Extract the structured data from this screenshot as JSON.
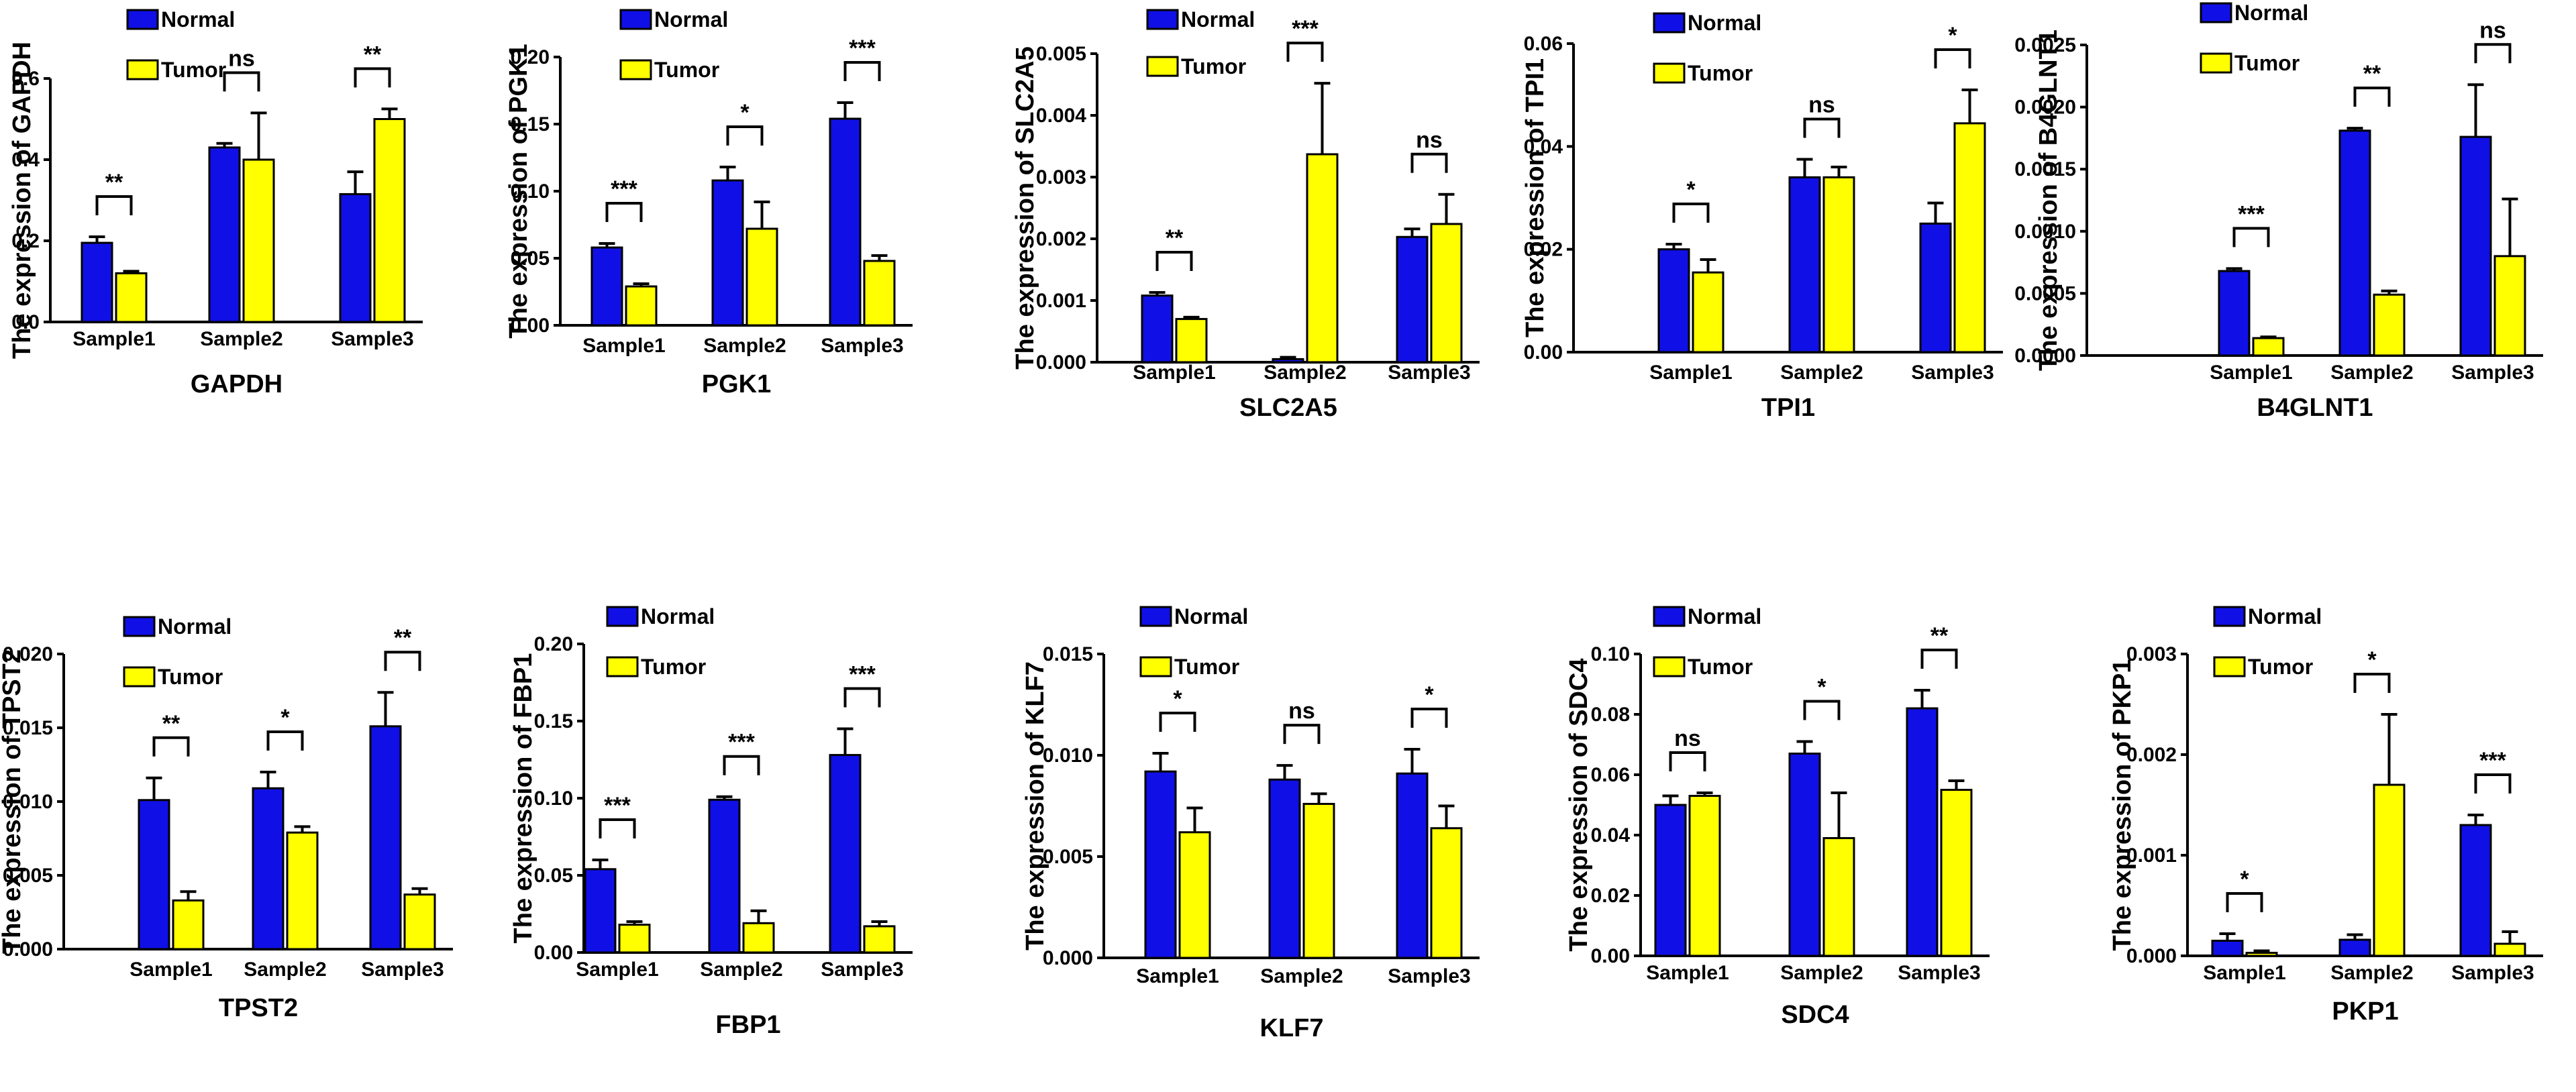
{
  "colors": {
    "normal": "#1010E6",
    "tumor": "#FFFF00",
    "stroke": "#000000"
  },
  "legend": {
    "normal": "Normal",
    "tumor": "Tumor"
  },
  "chart_data": [
    {
      "type": "bar",
      "gene": "GAPDH",
      "ylabel": "The expression of GAPDH",
      "categories": [
        "Sample1",
        "Sample2",
        "Sample3"
      ],
      "ylim": [
        0,
        0.6
      ],
      "yticks": [
        "0.0",
        "0.2",
        "0.4",
        "0.6"
      ],
      "series": [
        {
          "name": "Normal",
          "values": [
            0.195,
            0.43,
            0.315
          ],
          "errors": [
            0.015,
            0.01,
            0.055
          ]
        },
        {
          "name": "Tumor",
          "values": [
            0.12,
            0.4,
            0.5
          ],
          "errors": [
            0.005,
            0.115,
            0.025
          ]
        }
      ],
      "significance": [
        "**",
        "ns",
        "**"
      ]
    },
    {
      "type": "bar",
      "gene": "PGK1",
      "ylabel": "The expression of PGK1",
      "categories": [
        "Sample1",
        "Sample2",
        "Sample3"
      ],
      "ylim": [
        0,
        0.2
      ],
      "yticks": [
        "0.00",
        "0.05",
        "0.10",
        "0.15",
        "0.20"
      ],
      "series": [
        {
          "name": "Normal",
          "values": [
            0.058,
            0.108,
            0.154
          ],
          "errors": [
            0.003,
            0.01,
            0.012
          ]
        },
        {
          "name": "Tumor",
          "values": [
            0.029,
            0.072,
            0.048
          ],
          "errors": [
            0.002,
            0.02,
            0.004
          ]
        }
      ],
      "significance": [
        "***",
        "*",
        "***"
      ]
    },
    {
      "type": "bar",
      "gene": "SLC2A5",
      "ylabel": "The expression of SLC2A5",
      "categories": [
        "Sample1",
        "Sample2",
        "Sample3"
      ],
      "ylim": [
        0,
        0.005
      ],
      "yticks": [
        "0.000",
        "0.001",
        "0.002",
        "0.003",
        "0.004",
        "0.005"
      ],
      "series": [
        {
          "name": "Normal",
          "values": [
            0.00108,
            5e-05,
            0.00203
          ],
          "errors": [
            5e-05,
            3e-05,
            0.00013
          ]
        },
        {
          "name": "Tumor",
          "values": [
            0.0007,
            0.00337,
            0.00224
          ],
          "errors": [
            3e-05,
            0.00115,
            0.00048
          ]
        }
      ],
      "significance": [
        "**",
        "***",
        "ns"
      ]
    },
    {
      "type": "bar",
      "gene": "TPI1",
      "ylabel": "The expression of TPI1",
      "categories": [
        "Sample1",
        "Sample2",
        "Sample3"
      ],
      "ylim": [
        0,
        0.06
      ],
      "yticks": [
        "0.00",
        "0.02",
        "0.04",
        "0.06"
      ],
      "series": [
        {
          "name": "Normal",
          "values": [
            0.02,
            0.034,
            0.025
          ],
          "errors": [
            0.001,
            0.0035,
            0.004
          ]
        },
        {
          "name": "Tumor",
          "values": [
            0.0155,
            0.034,
            0.0445
          ],
          "errors": [
            0.0025,
            0.002,
            0.0065
          ]
        }
      ],
      "significance": [
        "*",
        "ns",
        "*"
      ]
    },
    {
      "type": "bar",
      "gene": "B4GLNT1",
      "ylabel": "The expression of B4GLNT1",
      "categories": [
        "Sample1",
        "Sample2",
        "Sample3"
      ],
      "ylim": [
        0,
        0.0025
      ],
      "yticks": [
        "0.0000",
        "0.0005",
        "0.0010",
        "0.0015",
        "0.0020",
        "0.0025"
      ],
      "series": [
        {
          "name": "Normal",
          "values": [
            0.00068,
            0.00181,
            0.00176
          ],
          "errors": [
            2e-05,
            2e-05,
            0.00042
          ]
        },
        {
          "name": "Tumor",
          "values": [
            0.00014,
            0.00049,
            0.0008
          ],
          "errors": [
            1e-05,
            3e-05,
            0.00046
          ]
        }
      ],
      "significance": [
        "***",
        "**",
        "ns"
      ]
    },
    {
      "type": "bar",
      "gene": "TPST2",
      "ylabel": "The expression of TPST2",
      "categories": [
        "Sample1",
        "Sample2",
        "Sample3"
      ],
      "ylim": [
        0,
        0.02
      ],
      "yticks": [
        "0.000",
        "0.005",
        "0.010",
        "0.015",
        "0.020"
      ],
      "series": [
        {
          "name": "Normal",
          "values": [
            0.0101,
            0.0109,
            0.0151
          ],
          "errors": [
            0.0015,
            0.0011,
            0.0023
          ]
        },
        {
          "name": "Tumor",
          "values": [
            0.0033,
            0.0079,
            0.0037
          ],
          "errors": [
            0.0006,
            0.0004,
            0.0004
          ]
        }
      ],
      "significance": [
        "**",
        "*",
        "**"
      ]
    },
    {
      "type": "bar",
      "gene": "FBP1",
      "ylabel": "The expression of FBP1",
      "categories": [
        "Sample1",
        "Sample2",
        "Sample3"
      ],
      "ylim": [
        0,
        0.2
      ],
      "yticks": [
        "0.00",
        "0.05",
        "0.10",
        "0.15",
        "0.20"
      ],
      "series": [
        {
          "name": "Normal",
          "values": [
            0.054,
            0.099,
            0.128
          ],
          "errors": [
            0.006,
            0.002,
            0.017
          ]
        },
        {
          "name": "Tumor",
          "values": [
            0.018,
            0.019,
            0.017
          ],
          "errors": [
            0.002,
            0.008,
            0.003
          ]
        }
      ],
      "significance": [
        "***",
        "***",
        "***"
      ]
    },
    {
      "type": "bar",
      "gene": "KLF7",
      "ylabel": "The expression of KLF7",
      "categories": [
        "Sample1",
        "Sample2",
        "Sample3"
      ],
      "ylim": [
        0,
        0.015
      ],
      "yticks": [
        "0.000",
        "0.005",
        "0.010",
        "0.015"
      ],
      "series": [
        {
          "name": "Normal",
          "values": [
            0.0092,
            0.0088,
            0.0091
          ],
          "errors": [
            0.0009,
            0.0007,
            0.0012
          ]
        },
        {
          "name": "Tumor",
          "values": [
            0.0062,
            0.0076,
            0.0064
          ],
          "errors": [
            0.0012,
            0.0005,
            0.0011
          ]
        }
      ],
      "significance": [
        "*",
        "ns",
        "*"
      ]
    },
    {
      "type": "bar",
      "gene": "SDC4",
      "ylabel": "The expression of SDC4",
      "categories": [
        "Sample1",
        "Sample2",
        "Sample3"
      ],
      "ylim": [
        0,
        0.1
      ],
      "yticks": [
        "0.00",
        "0.02",
        "0.04",
        "0.06",
        "0.08",
        "0.10"
      ],
      "series": [
        {
          "name": "Normal",
          "values": [
            0.05,
            0.067,
            0.082
          ],
          "errors": [
            0.003,
            0.004,
            0.006
          ]
        },
        {
          "name": "Tumor",
          "values": [
            0.053,
            0.039,
            0.055
          ],
          "errors": [
            0.001,
            0.015,
            0.003
          ]
        }
      ],
      "significance": [
        "ns",
        "*",
        "**"
      ]
    },
    {
      "type": "bar",
      "gene": "PKP1",
      "ylabel": "The expression of PKP1",
      "categories": [
        "Sample1",
        "Sample2",
        "Sample3"
      ],
      "ylim": [
        0,
        0.003
      ],
      "yticks": [
        "0.000",
        "0.001",
        "0.002",
        "0.003"
      ],
      "series": [
        {
          "name": "Normal",
          "values": [
            0.00015,
            0.00016,
            0.0013
          ],
          "errors": [
            7e-05,
            5e-05,
            0.0001
          ]
        },
        {
          "name": "Tumor",
          "values": [
            3e-05,
            0.0017,
            0.00012
          ],
          "errors": [
            2e-05,
            0.0007,
            0.00012
          ]
        }
      ],
      "significance": [
        "*",
        "*",
        "***"
      ]
    }
  ]
}
